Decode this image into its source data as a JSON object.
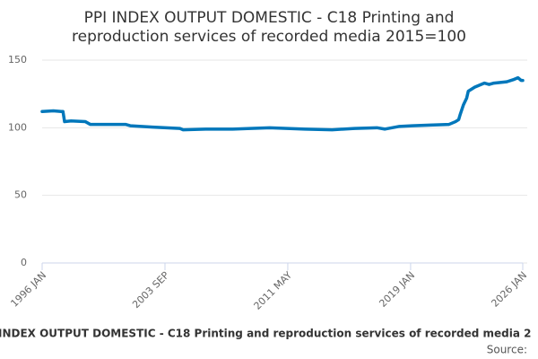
{
  "chart_data": {
    "type": "line",
    "title": [
      "PPI INDEX OUTPUT DOMESTIC - C18 Printing and",
      "reproduction services of recorded media 2015=100"
    ],
    "caption": "INDEX OUTPUT DOMESTIC - C18 Printing and reproduction services of recorded media 2",
    "source": "Source:",
    "color": "#0077bb",
    "x": [
      1996.0,
      1996.7,
      1997.2,
      1997.3,
      1997.4,
      1997.8,
      1998.7,
      1999.0,
      2000.1,
      2001.2,
      2001.5,
      2002.9,
      2004.6,
      2004.8,
      2006.2,
      2007.9,
      2009.0,
      2010.2,
      2011.3,
      2012.4,
      2014.1,
      2015.5,
      2016.9,
      2017.4,
      2018.3,
      2019.1,
      2020.2,
      2021.4,
      2021.8,
      2022.0,
      2022.1,
      2022.3,
      2022.5,
      2022.6,
      2023.0,
      2023.6,
      2023.9,
      2024.2,
      2025.0,
      2025.4,
      2025.7,
      2025.9,
      2026.0
    ],
    "values": [
      112,
      112.5,
      112,
      112,
      104.5,
      105,
      104.5,
      102.5,
      102.5,
      102.5,
      101.5,
      100.5,
      99.5,
      98.5,
      99,
      99,
      99.5,
      100,
      99.5,
      99,
      98.5,
      99.5,
      100,
      99,
      101,
      101.5,
      102,
      102.5,
      104.5,
      106,
      110,
      117,
      122,
      127,
      130,
      133,
      132,
      133,
      134,
      135.5,
      137,
      135,
      135
    ],
    "xlim": [
      1996.0,
      2026.0
    ],
    "xticks": [
      {
        "value": 1996.0,
        "label": "1996 JAN"
      },
      {
        "value": 2003.667,
        "label": "2003 SEP"
      },
      {
        "value": 2011.333,
        "label": "2011 MAY"
      },
      {
        "value": 2019.0,
        "label": "2019 JAN"
      },
      {
        "value": 2026.0,
        "label": "2026 JAN"
      }
    ],
    "ylim": [
      0,
      150
    ],
    "yticks": [
      0,
      50,
      100,
      150
    ],
    "grid": true
  }
}
